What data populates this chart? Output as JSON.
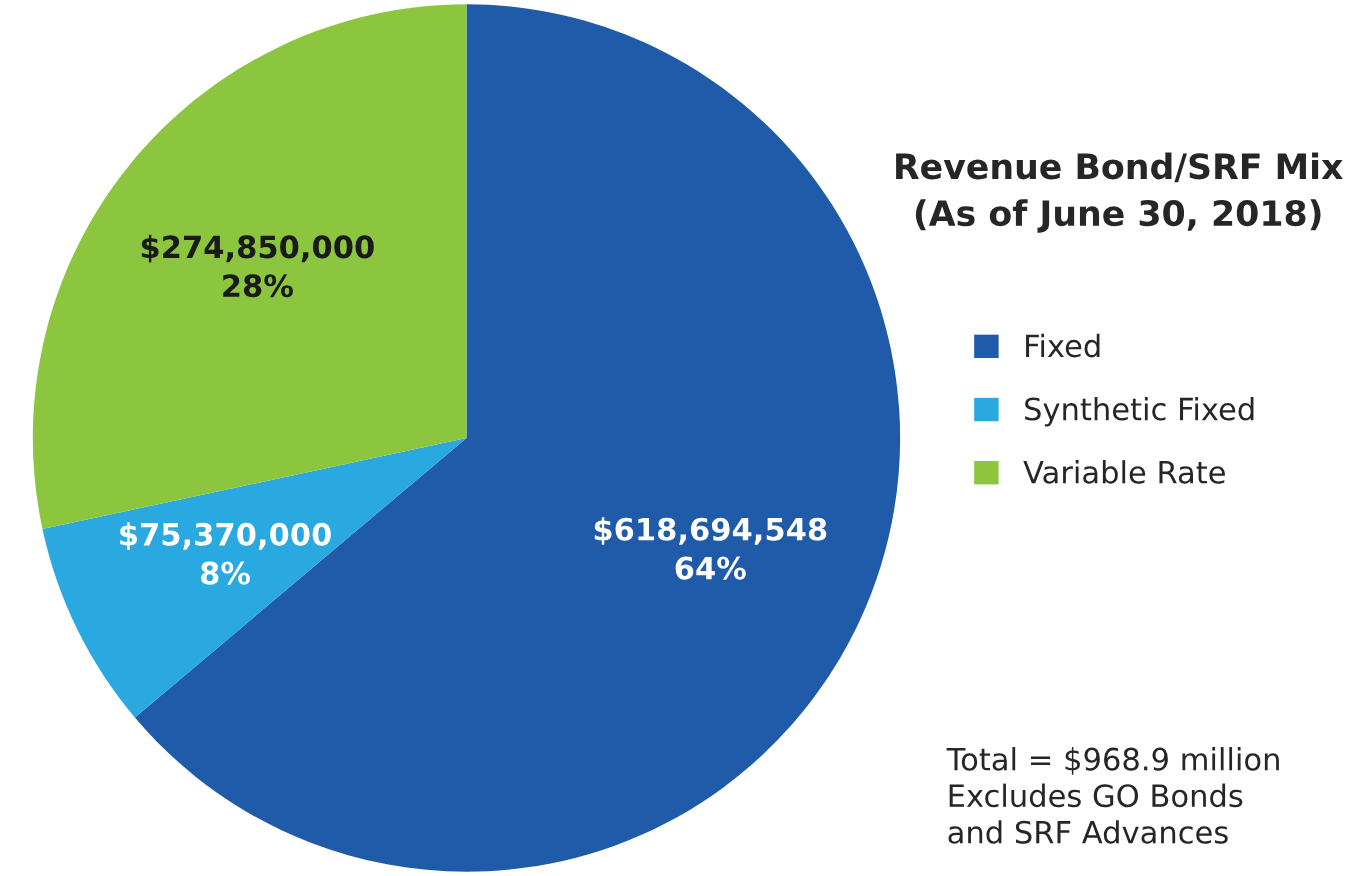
{
  "chart_data": {
    "type": "pie",
    "title": "Revenue Bond/SRF Mix\n(As of June 30, 2018)",
    "categories": [
      "Fixed",
      "Synthetic Fixed",
      "Variable Rate"
    ],
    "values": [
      618694548,
      75370000,
      274850000
    ],
    "colors": [
      "#1f5ba8",
      "#2aa8e0",
      "#8cc63f"
    ],
    "value_labels": [
      "$618,694,548\n64%",
      "$75,370,000\n8%",
      "$274,850,000\n28%"
    ],
    "legend": "right",
    "annotations": [
      "Total = $968.9 million\nExcludes GO Bonds\nand SRF Advances"
    ]
  }
}
